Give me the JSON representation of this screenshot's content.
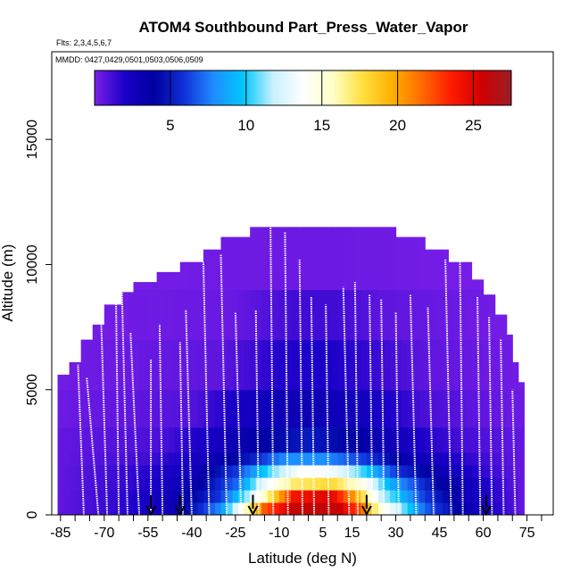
{
  "chart_data": {
    "type": "heatmap",
    "title": "ATOM4 Southbound Part_Press_Water_Vapor",
    "flights_label": "Flts: 2,3,4,5,6,7",
    "dates_label": "MMDD: 0427,0429,0501,0503,0506,0509",
    "xlabel": "Latitude (deg N)",
    "ylabel": "Altitude (m)",
    "xlim": [
      -88,
      84
    ],
    "ylim": [
      0,
      18500
    ],
    "x_ticks": [
      -85,
      -70,
      -55,
      -40,
      -25,
      -10,
      5,
      15,
      30,
      45,
      60,
      75
    ],
    "x_minor_ticks": [
      -80,
      -75,
      -65,
      -60,
      -50,
      -45,
      -35,
      -30,
      -20,
      -15,
      -5,
      0,
      10,
      20,
      25,
      35,
      40,
      50,
      55,
      65,
      70,
      80
    ],
    "x_tick_labels": [
      "-85",
      "-70",
      "-55",
      "-40",
      "-25",
      "-10",
      "5",
      "15",
      "30",
      "45",
      "60",
      "75"
    ],
    "y_ticks": [
      0,
      5000,
      10000,
      15000
    ],
    "y_tick_labels": [
      "0",
      "5000",
      "10000",
      "15000"
    ],
    "colorbar": {
      "min": 0,
      "max": 27.5,
      "ticks": [
        5,
        10,
        15,
        20,
        25
      ],
      "tick_labels": [
        "5",
        "10",
        "15",
        "20",
        "25"
      ],
      "colors": [
        "#7b1fe8",
        "#1a00c8",
        "#0000a0",
        "#1030d8",
        "#1e8cff",
        "#00c8ff",
        "#c8f0ff",
        "#ffffff",
        "#ffffc8",
        "#ffe040",
        "#ffb000",
        "#ff6a00",
        "#ff1a00",
        "#d00000",
        "#9a1e28"
      ]
    },
    "envelope_top": [
      {
        "lat": -86,
        "alt": 5600
      },
      {
        "lat": -84,
        "alt": 5600
      },
      {
        "lat": -82,
        "alt": 6100
      },
      {
        "lat": -79,
        "alt": 7000
      },
      {
        "lat": -75,
        "alt": 7600
      },
      {
        "lat": -70,
        "alt": 8400
      },
      {
        "lat": -65,
        "alt": 8900
      },
      {
        "lat": -60,
        "alt": 9300
      },
      {
        "lat": -52,
        "alt": 9700
      },
      {
        "lat": -45,
        "alt": 10100
      },
      {
        "lat": -37,
        "alt": 10600
      },
      {
        "lat": -30,
        "alt": 11100
      },
      {
        "lat": -20,
        "alt": 11500
      },
      {
        "lat": 20,
        "alt": 11500
      },
      {
        "lat": 30,
        "alt": 11100
      },
      {
        "lat": 40,
        "alt": 10600
      },
      {
        "lat": 48,
        "alt": 10100
      },
      {
        "lat": 55,
        "alt": 9400
      },
      {
        "lat": 60,
        "alt": 8800
      },
      {
        "lat": 64,
        "alt": 8000
      },
      {
        "lat": 67,
        "alt": 7200
      },
      {
        "lat": 70,
        "alt": 6100
      },
      {
        "lat": 72,
        "alt": 5300
      },
      {
        "lat": 73,
        "alt": 5000
      }
    ],
    "field_layers": [
      {
        "alt_min": 0,
        "alt_max": 500,
        "lat_values": [
          [
            -86,
            0.5
          ],
          [
            -65,
            1.5
          ],
          [
            -45,
            3
          ],
          [
            -30,
            8
          ],
          [
            -22,
            15
          ],
          [
            -15,
            22
          ],
          [
            -5,
            26
          ],
          [
            10,
            26
          ],
          [
            18,
            22
          ],
          [
            25,
            15
          ],
          [
            40,
            7
          ],
          [
            55,
            3
          ],
          [
            70,
            1
          ],
          [
            73,
            0.5
          ]
        ]
      },
      {
        "alt_min": 500,
        "alt_max": 1000,
        "lat_values": [
          [
            -86,
            0.5
          ],
          [
            -65,
            1.5
          ],
          [
            -45,
            3
          ],
          [
            -30,
            6
          ],
          [
            -20,
            12
          ],
          [
            -12,
            18
          ],
          [
            -5,
            24
          ],
          [
            8,
            25
          ],
          [
            16,
            20
          ],
          [
            25,
            12
          ],
          [
            40,
            6
          ],
          [
            55,
            2.5
          ],
          [
            70,
            1
          ],
          [
            73,
            0.5
          ]
        ]
      },
      {
        "alt_min": 1000,
        "alt_max": 1500,
        "lat_values": [
          [
            -86,
            0.5
          ],
          [
            -60,
            1.5
          ],
          [
            -40,
            3
          ],
          [
            -25,
            7
          ],
          [
            -15,
            13
          ],
          [
            -5,
            17
          ],
          [
            8,
            18
          ],
          [
            18,
            15
          ],
          [
            28,
            9
          ],
          [
            45,
            4
          ],
          [
            60,
            2
          ],
          [
            73,
            0.5
          ]
        ]
      },
      {
        "alt_min": 1500,
        "alt_max": 2000,
        "lat_values": [
          [
            -86,
            0.5
          ],
          [
            -60,
            1.5
          ],
          [
            -40,
            2.5
          ],
          [
            -25,
            6
          ],
          [
            -12,
            11
          ],
          [
            -2,
            14
          ],
          [
            10,
            13
          ],
          [
            20,
            10
          ],
          [
            30,
            6
          ],
          [
            45,
            3
          ],
          [
            60,
            1.5
          ],
          [
            73,
            0.5
          ]
        ]
      },
      {
        "alt_min": 2000,
        "alt_max": 2500,
        "lat_values": [
          [
            -86,
            0.5
          ],
          [
            -55,
            1.2
          ],
          [
            -35,
            2.5
          ],
          [
            -20,
            5
          ],
          [
            -8,
            8
          ],
          [
            5,
            8
          ],
          [
            20,
            6
          ],
          [
            35,
            3
          ],
          [
            55,
            1.5
          ],
          [
            73,
            0.5
          ]
        ]
      },
      {
        "alt_min": 2500,
        "alt_max": 3500,
        "lat_values": [
          [
            -86,
            0.5
          ],
          [
            -50,
            1
          ],
          [
            -30,
            2.5
          ],
          [
            -15,
            4
          ],
          [
            0,
            5
          ],
          [
            15,
            4
          ],
          [
            30,
            2.5
          ],
          [
            50,
            1.2
          ],
          [
            73,
            0.5
          ]
        ]
      },
      {
        "alt_min": 3500,
        "alt_max": 5000,
        "lat_values": [
          [
            -86,
            0.3
          ],
          [
            -40,
            0.8
          ],
          [
            -20,
            2.5
          ],
          [
            0,
            3
          ],
          [
            20,
            2.5
          ],
          [
            40,
            1
          ],
          [
            73,
            0.3
          ]
        ]
      },
      {
        "alt_min": 5000,
        "alt_max": 7000,
        "lat_values": [
          [
            -86,
            0.2
          ],
          [
            -30,
            0.6
          ],
          [
            -10,
            1.8
          ],
          [
            5,
            2
          ],
          [
            20,
            1.5
          ],
          [
            40,
            0.6
          ],
          [
            73,
            0.2
          ]
        ]
      },
      {
        "alt_min": 7000,
        "alt_max": 9000,
        "lat_values": [
          [
            -86,
            0.1
          ],
          [
            -25,
            0.4
          ],
          [
            -5,
            1.2
          ],
          [
            10,
            1.2
          ],
          [
            25,
            0.6
          ],
          [
            73,
            0.1
          ]
        ]
      },
      {
        "alt_min": 9000,
        "alt_max": 12000,
        "lat_values": [
          [
            -86,
            0.05
          ],
          [
            -10,
            0.3
          ],
          [
            10,
            0.3
          ],
          [
            73,
            0.05
          ]
        ]
      }
    ],
    "profiles": [
      {
        "lat_bottom": -77,
        "lat_top": -79,
        "alt_top": 6000
      },
      {
        "lat_bottom": -72,
        "lat_top": -76,
        "alt_top": 5500
      },
      {
        "lat_bottom": -69,
        "lat_top": -71,
        "alt_top": 7600
      },
      {
        "lat_bottom": -65,
        "lat_top": -66,
        "alt_top": 8900
      },
      {
        "lat_bottom": -62,
        "lat_top": -64,
        "alt_top": 9200
      },
      {
        "lat_bottom": -58,
        "lat_top": -61,
        "alt_top": 7300
      },
      {
        "lat_bottom": -54,
        "lat_top": -54,
        "alt_top": 6200
      },
      {
        "lat_bottom": -50,
        "lat_top": -51,
        "alt_top": 7600
      },
      {
        "lat_bottom": -43,
        "lat_top": -44,
        "alt_top": 6900
      },
      {
        "lat_bottom": -40,
        "lat_top": -42,
        "alt_top": 8200
      },
      {
        "lat_bottom": -34,
        "lat_top": -36,
        "alt_top": 10100
      },
      {
        "lat_bottom": -28,
        "lat_top": -30,
        "alt_top": 10400
      },
      {
        "lat_bottom": -23,
        "lat_top": -25,
        "alt_top": 8100
      },
      {
        "lat_bottom": -17,
        "lat_top": -18,
        "alt_top": 8200
      },
      {
        "lat_bottom": -12,
        "lat_top": -13,
        "alt_top": 11900
      },
      {
        "lat_bottom": -7,
        "lat_top": -8,
        "alt_top": 11300
      },
      {
        "lat_bottom": -2,
        "lat_top": -3,
        "alt_top": 10200
      },
      {
        "lat_bottom": 2,
        "lat_top": 1,
        "alt_top": 8700
      },
      {
        "lat_bottom": 7,
        "lat_top": 6,
        "alt_top": 8400
      },
      {
        "lat_bottom": 14,
        "lat_top": 12,
        "alt_top": 9100
      },
      {
        "lat_bottom": 17,
        "lat_top": 16,
        "alt_top": 9300
      },
      {
        "lat_bottom": 22,
        "lat_top": 21,
        "alt_top": 8800
      },
      {
        "lat_bottom": 26,
        "lat_top": 25,
        "alt_top": 8600
      },
      {
        "lat_bottom": 31,
        "lat_top": 30,
        "alt_top": 8100
      },
      {
        "lat_bottom": 37,
        "lat_top": 35,
        "alt_top": 8800
      },
      {
        "lat_bottom": 43,
        "lat_top": 41,
        "alt_top": 8300
      },
      {
        "lat_bottom": 49,
        "lat_top": 47,
        "alt_top": 10200
      },
      {
        "lat_bottom": 53,
        "lat_top": 52,
        "alt_top": 10200
      },
      {
        "lat_bottom": 59,
        "lat_top": 58,
        "alt_top": 8700
      },
      {
        "lat_bottom": 63,
        "lat_top": 62,
        "alt_top": 7900
      },
      {
        "lat_bottom": 67,
        "lat_top": 66,
        "alt_top": 7000
      },
      {
        "lat_bottom": 71,
        "lat_top": 70,
        "alt_top": 5000
      }
    ],
    "arrows": [
      {
        "lat": -54,
        "alt_top": 800
      },
      {
        "lat": -44,
        "alt_top": 800
      },
      {
        "lat": -19,
        "alt_top": 800
      },
      {
        "lat": 20,
        "alt_top": 800
      },
      {
        "lat": 61,
        "alt_top": 800
      }
    ]
  }
}
